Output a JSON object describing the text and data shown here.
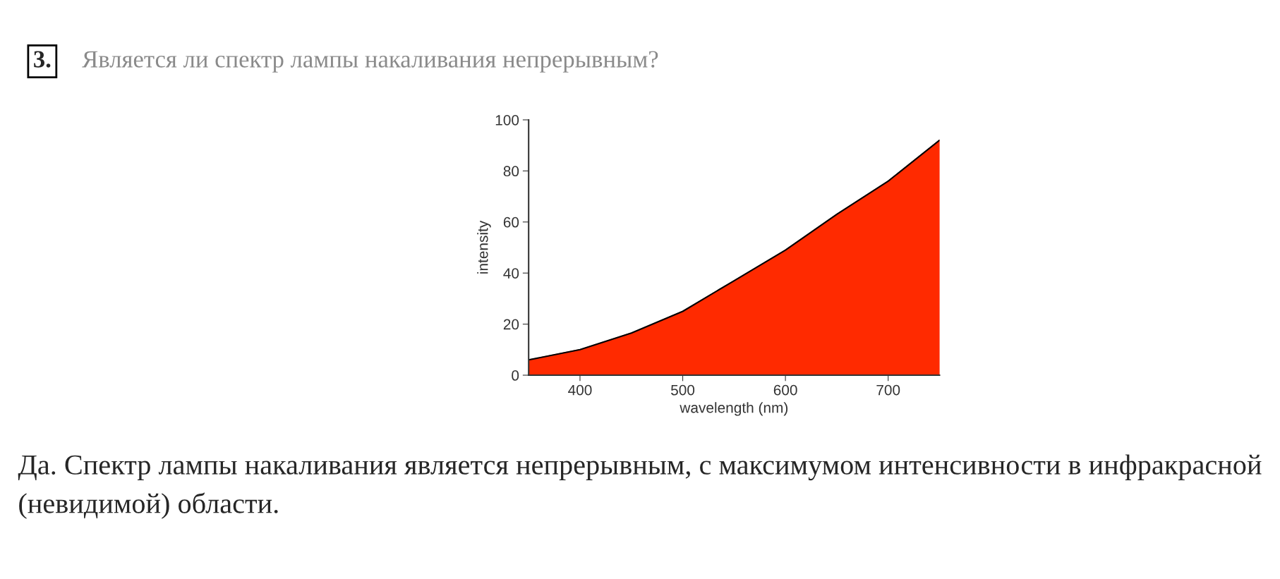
{
  "chart_data": {
    "type": "area",
    "title": "Является ли спектр лампы накаливания непрерывным?",
    "xlabel": "wavelength (nm)",
    "ylabel": "intensity",
    "x": [
      350,
      400,
      450,
      500,
      550,
      600,
      650,
      700,
      750
    ],
    "series": [
      {
        "values": [
          6,
          10,
          16.5,
          25,
          37,
          49,
          63,
          76,
          92
        ],
        "color": "#ff2a00"
      }
    ],
    "xlim": [
      350,
      750
    ],
    "ylim": [
      0,
      100
    ],
    "xticks": [
      400,
      500,
      600,
      700
    ],
    "yticks": [
      0,
      20,
      40,
      60,
      80,
      100
    ],
    "annotations": [
      "3.",
      "Да. Спектр лампы накаливания является непрерывным, с максимумом интенсивности в инфракрасной (невидимой) области."
    ]
  }
}
